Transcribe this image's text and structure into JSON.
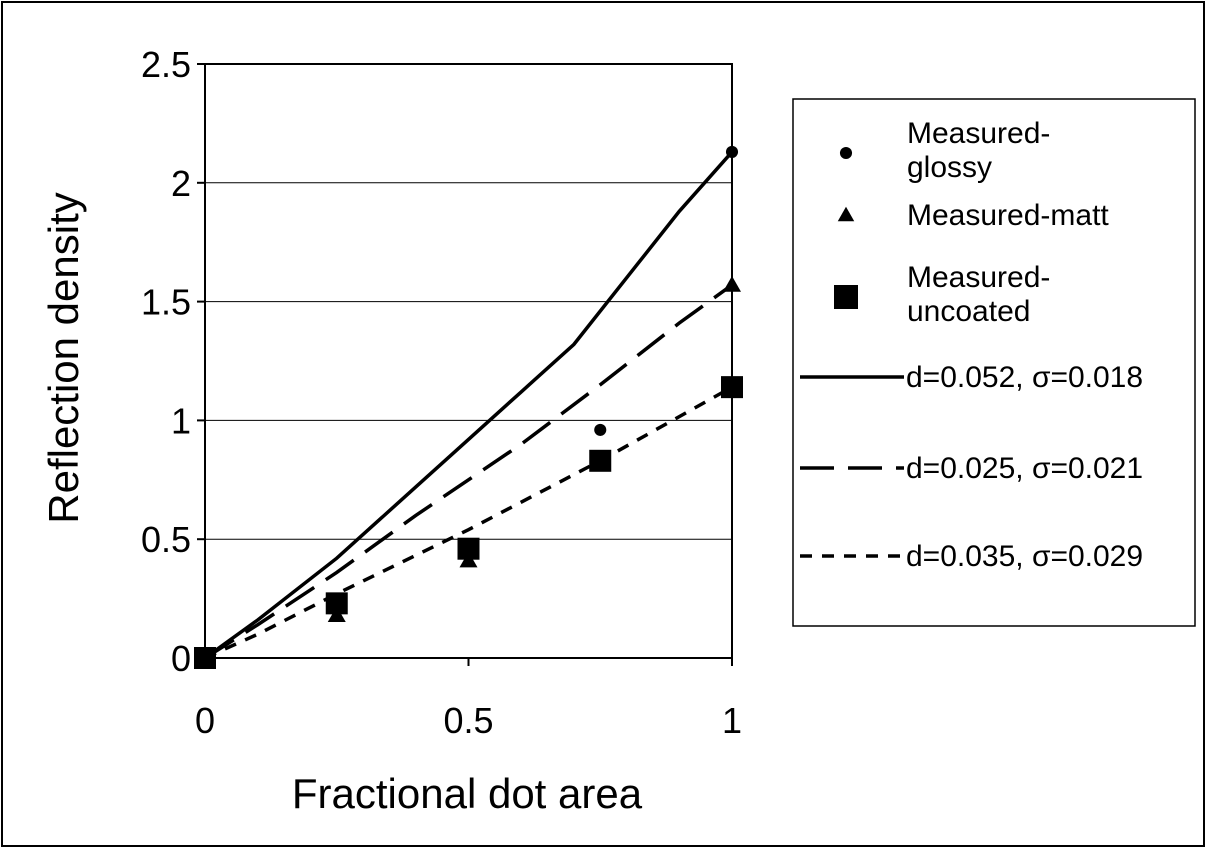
{
  "chart_data": {
    "type": "scatter",
    "xlabel": "Fractional dot area",
    "ylabel": "Reflection density",
    "xlim": [
      0,
      1
    ],
    "ylim": [
      0,
      2.5
    ],
    "x_ticks": [
      "0",
      "0.5",
      "1"
    ],
    "y_ticks": [
      "0",
      "0.5",
      "1",
      "1.5",
      "2",
      "2.5"
    ],
    "grid": "horizontal",
    "legend_position": "right",
    "series": [
      {
        "name": "Measured-glossy",
        "kind": "marker",
        "marker": "circle",
        "x": [
          0,
          0.25,
          0.5,
          0.75,
          1
        ],
        "y": [
          0,
          0.21,
          0.45,
          0.96,
          2.13
        ]
      },
      {
        "name": "Measured-matt",
        "kind": "marker",
        "marker": "triangle",
        "x": [
          0,
          0.25,
          0.5,
          0.75,
          1
        ],
        "y": [
          0,
          0.18,
          0.41,
          0.82,
          1.57
        ]
      },
      {
        "name": "Measured-uncoated",
        "kind": "marker",
        "marker": "square",
        "x": [
          0,
          0.25,
          0.5,
          0.75,
          1
        ],
        "y": [
          0,
          0.23,
          0.46,
          0.83,
          1.14
        ]
      },
      {
        "name": "d=0.052, σ=0.018",
        "kind": "line",
        "dash": "solid",
        "x": [
          0,
          0.1,
          0.25,
          0.4,
          0.5,
          0.6,
          0.7,
          0.8,
          0.9,
          1
        ],
        "y": [
          0,
          0.16,
          0.42,
          0.72,
          0.92,
          1.12,
          1.32,
          1.6,
          1.88,
          2.13
        ]
      },
      {
        "name": "d=0.025, σ=0.021",
        "kind": "line",
        "dash": "long",
        "x": [
          0,
          0.1,
          0.25,
          0.4,
          0.5,
          0.6,
          0.75,
          0.9,
          1
        ],
        "y": [
          0,
          0.14,
          0.36,
          0.6,
          0.75,
          0.9,
          1.15,
          1.41,
          1.57
        ]
      },
      {
        "name": "d=0.035, σ=0.029",
        "kind": "line",
        "dash": "short",
        "x": [
          0,
          0.1,
          0.25,
          0.5,
          0.75,
          1
        ],
        "y": [
          0,
          0.1,
          0.27,
          0.54,
          0.83,
          1.14
        ]
      }
    ]
  }
}
